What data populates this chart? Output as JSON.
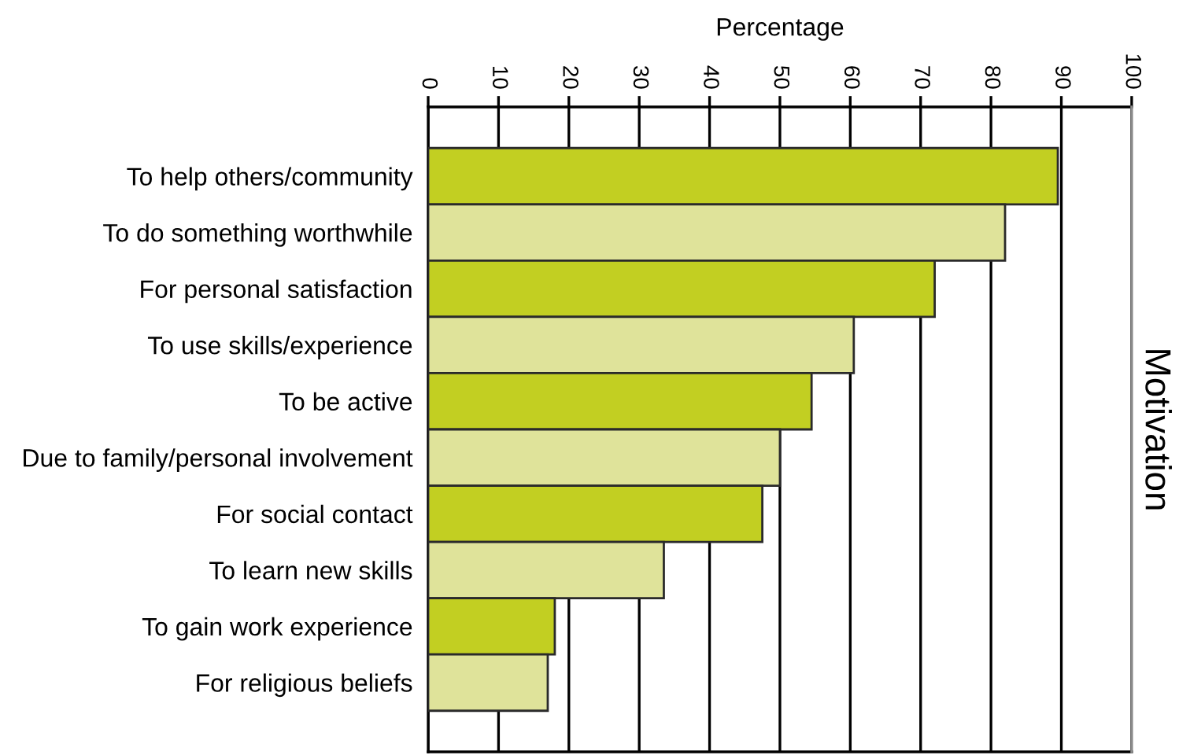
{
  "chart_data": {
    "type": "bar",
    "orientation": "horizontal",
    "xlabel": "Percentage",
    "ylabel": "Motivation",
    "categories": [
      "To help others/community",
      "To do something worthwhile",
      "For personal satisfaction",
      "To use skills/experience",
      "To be active",
      "Due to family/personal involvement",
      "For social contact",
      "To learn new skills",
      "To gain work experience",
      "For religious beliefs"
    ],
    "values": [
      89.5,
      82,
      72,
      60.5,
      54.5,
      50,
      47.5,
      33.5,
      18,
      17
    ],
    "colors": [
      "#c2cf22",
      "#dfe39a",
      "#c2cf22",
      "#dfe39a",
      "#c2cf22",
      "#dfe39a",
      "#c2cf22",
      "#dfe39a",
      "#c2cf22",
      "#dfe39a"
    ],
    "xlim": [
      0,
      100
    ],
    "xticks": [
      0,
      10,
      20,
      30,
      40,
      50,
      60,
      70,
      80,
      90,
      100
    ],
    "grid": "x"
  }
}
